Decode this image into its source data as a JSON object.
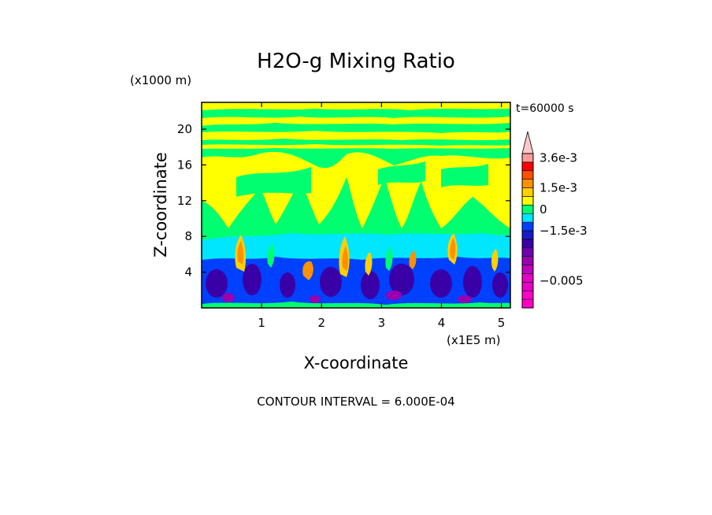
{
  "chart_data": {
    "type": "heatmap",
    "title": "H2O-g Mixing Ratio",
    "time_label": "t=60000 s",
    "xlabel": "X-coordinate",
    "ylabel": "Z-coordinate",
    "x_multiplier_label": "(x1E5 m)",
    "y_multiplier_label": "(x1000 m)",
    "xlim": [
      0,
      5.15
    ],
    "ylim": [
      0,
      23
    ],
    "x_ticks": [
      1,
      2,
      3,
      4,
      5
    ],
    "y_ticks": [
      4,
      8,
      12,
      16,
      20
    ],
    "contour_interval_label": "CONTOUR INTERVAL = 6.000E-04",
    "colorbar": {
      "levels": [
        -0.0066,
        -0.006,
        -0.0054,
        -0.0048,
        -0.0042,
        -0.0036,
        -0.003,
        -0.0024,
        -0.0018,
        -0.0012,
        -0.0006,
        0,
        0.0006,
        0.0012,
        0.0018,
        0.0024,
        0.003,
        0.0036
      ],
      "colors": [
        "#ff00c8",
        "#ff00c8",
        "#e600c8",
        "#e600c8",
        "#c000c0",
        "#9a00b0",
        "#7000b0",
        "#3a00a8",
        "#1a1ac8",
        "#0040ff",
        "#00e6ff",
        "#00ff70",
        "#ffff00",
        "#ffd000",
        "#ff9000",
        "#ff5000",
        "#ff0000",
        "#ff9a9a"
      ],
      "tick_labels": [
        {
          "value": 0.0036,
          "label": "3.6e-3"
        },
        {
          "value": 0.0015,
          "label": "1.5e-3"
        },
        {
          "value": 0,
          "label": "0"
        },
        {
          "value": -0.0015,
          "label": "−1.5e-3"
        },
        {
          "value": -0.005,
          "label": "−0.005"
        }
      ]
    },
    "regions": [
      {
        "name": "upper-layers",
        "z_range": [
          14,
          23
        ],
        "pattern": "alternating green and yellow bands"
      },
      {
        "name": "plumes",
        "z_range": [
          7,
          14
        ],
        "pattern": "yellow plumes rising into green background"
      },
      {
        "name": "cyan-layer",
        "z_range": [
          5,
          8
        ],
        "pattern": "cyan band"
      },
      {
        "name": "boundary-layer",
        "z_range": [
          0,
          6
        ],
        "pattern": "blue and purple cells with orange plume roots"
      }
    ]
  }
}
